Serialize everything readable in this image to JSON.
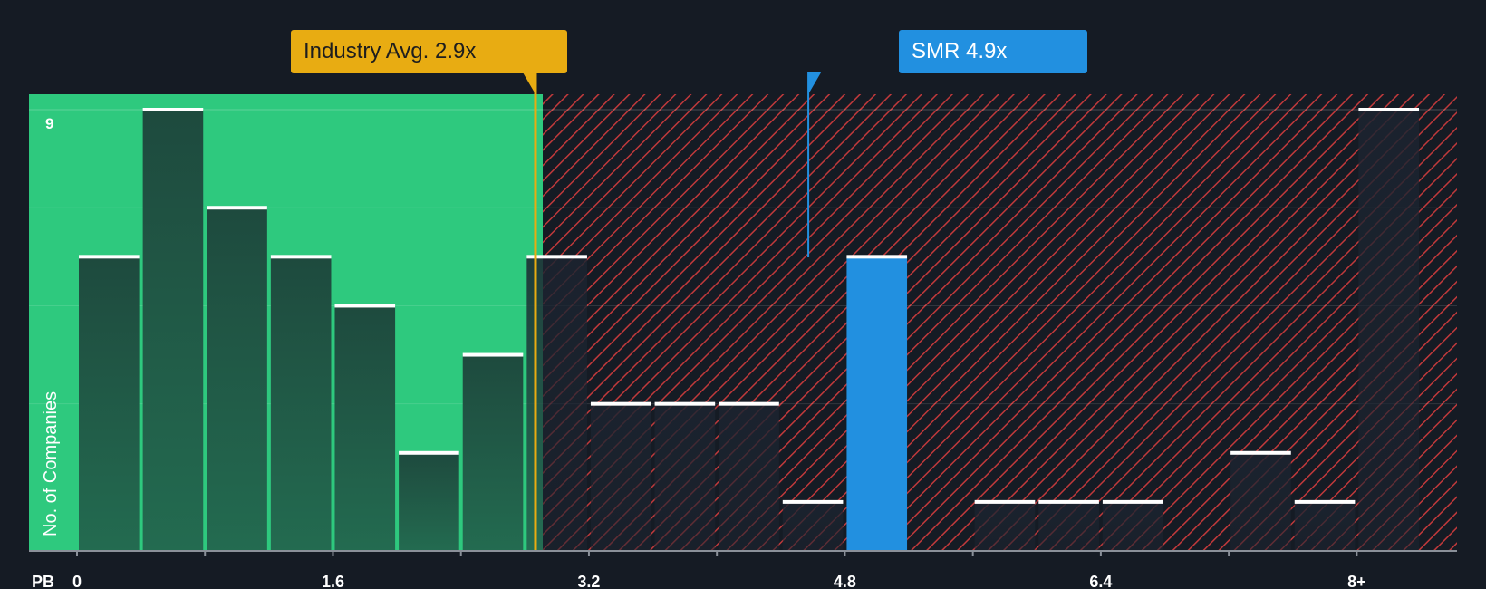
{
  "colors": {
    "background": "#151b24",
    "fair_zone": "#2ec97e",
    "bar_dark": "#1e4a3e",
    "highlight": "#2290e0",
    "industry": "#e8ac12",
    "hatch": "#c0393b",
    "bar_top": "#ffffff"
  },
  "chart_data": {
    "type": "bar",
    "xlabel": "PB",
    "ylabel": "No. of Companies",
    "x_ticks": [
      "0",
      "1.6",
      "3.2",
      "4.8",
      "6.4",
      "8+"
    ],
    "y_ticks": [
      "9"
    ],
    "ylim": [
      0,
      9
    ],
    "bin_width": 0.4,
    "bins": [
      {
        "start": 0.0,
        "count": 6
      },
      {
        "start": 0.4,
        "count": 9
      },
      {
        "start": 0.8,
        "count": 7
      },
      {
        "start": 1.2,
        "count": 6
      },
      {
        "start": 1.6,
        "count": 5
      },
      {
        "start": 2.0,
        "count": 2
      },
      {
        "start": 2.4,
        "count": 4
      },
      {
        "start": 2.8,
        "count": 6
      },
      {
        "start": 3.2,
        "count": 3
      },
      {
        "start": 3.6,
        "count": 3
      },
      {
        "start": 4.0,
        "count": 3
      },
      {
        "start": 4.4,
        "count": 1
      },
      {
        "start": 4.8,
        "count": 6,
        "highlight": true
      },
      {
        "start": 5.2,
        "count": 0
      },
      {
        "start": 5.6,
        "count": 1
      },
      {
        "start": 6.0,
        "count": 1
      },
      {
        "start": 6.4,
        "count": 1
      },
      {
        "start": 6.8,
        "count": 0
      },
      {
        "start": 7.2,
        "count": 2
      },
      {
        "start": 7.6,
        "count": 1
      },
      {
        "start": 8.0,
        "count": 9
      }
    ],
    "fair_range": [
      0,
      2.8
    ],
    "grid": true,
    "industry_avg": {
      "label": "Industry Avg. 2.9x",
      "value": 2.9
    },
    "company": {
      "label": "SMR 4.9x",
      "value": 4.9
    }
  }
}
